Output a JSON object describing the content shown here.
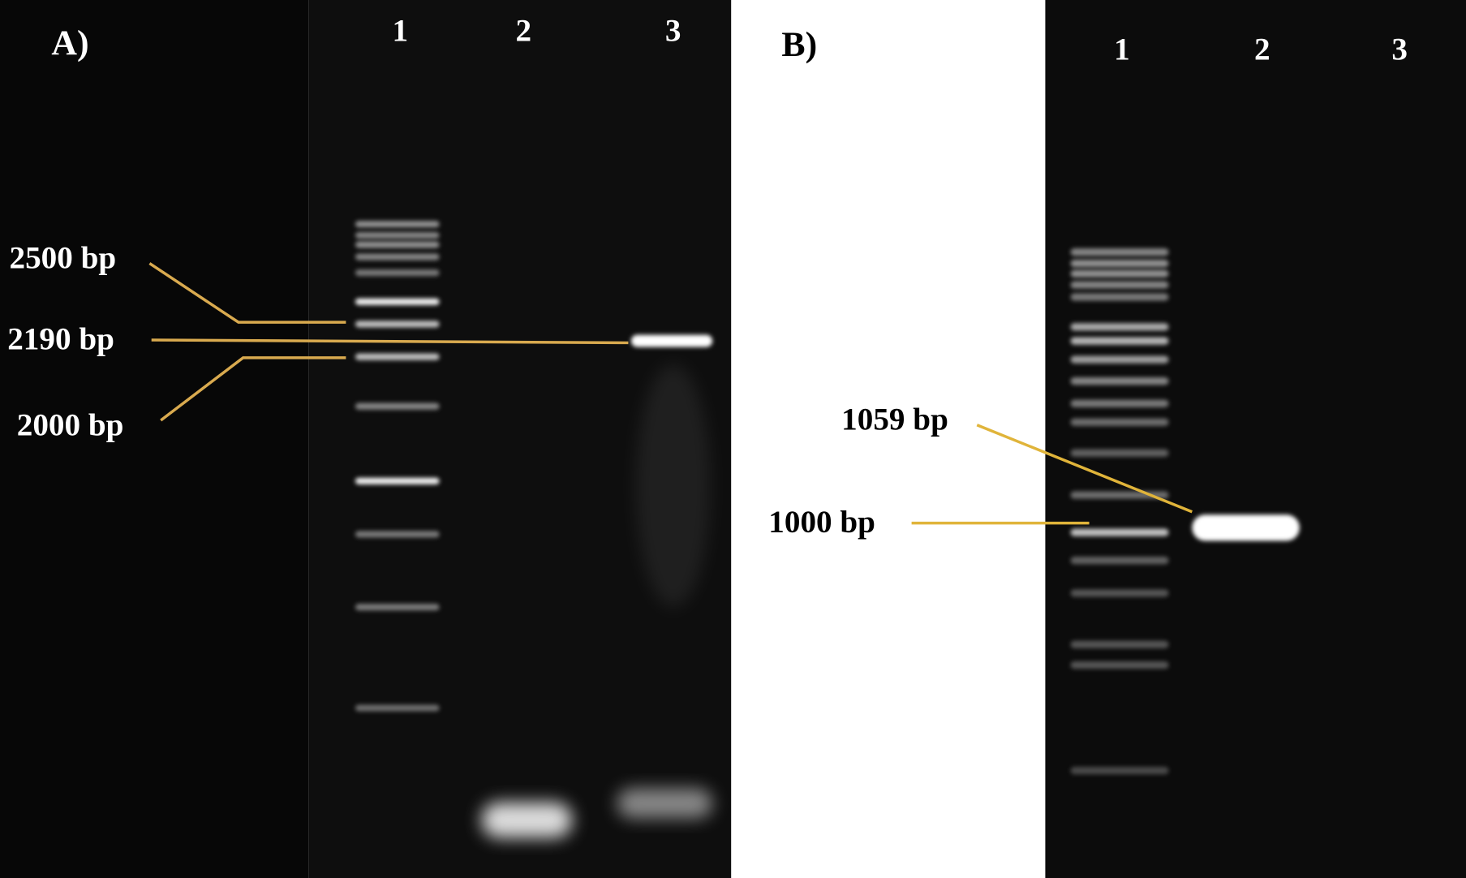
{
  "panel_a": {
    "label": "A)",
    "lanes": [
      "1",
      "2",
      "3"
    ],
    "markers": {
      "m2500": "2500 bp",
      "m2190": "2190 bp",
      "m2000": "2000 bp"
    }
  },
  "panel_b": {
    "label": "B)",
    "lanes": [
      "1",
      "2",
      "3"
    ],
    "markers": {
      "m1059": "1059 bp",
      "m1000": "1000 bp"
    }
  },
  "colors": {
    "gel_background": "#0c0c0c",
    "leader_line": "#d9aa4f",
    "band": "#ffffff"
  }
}
